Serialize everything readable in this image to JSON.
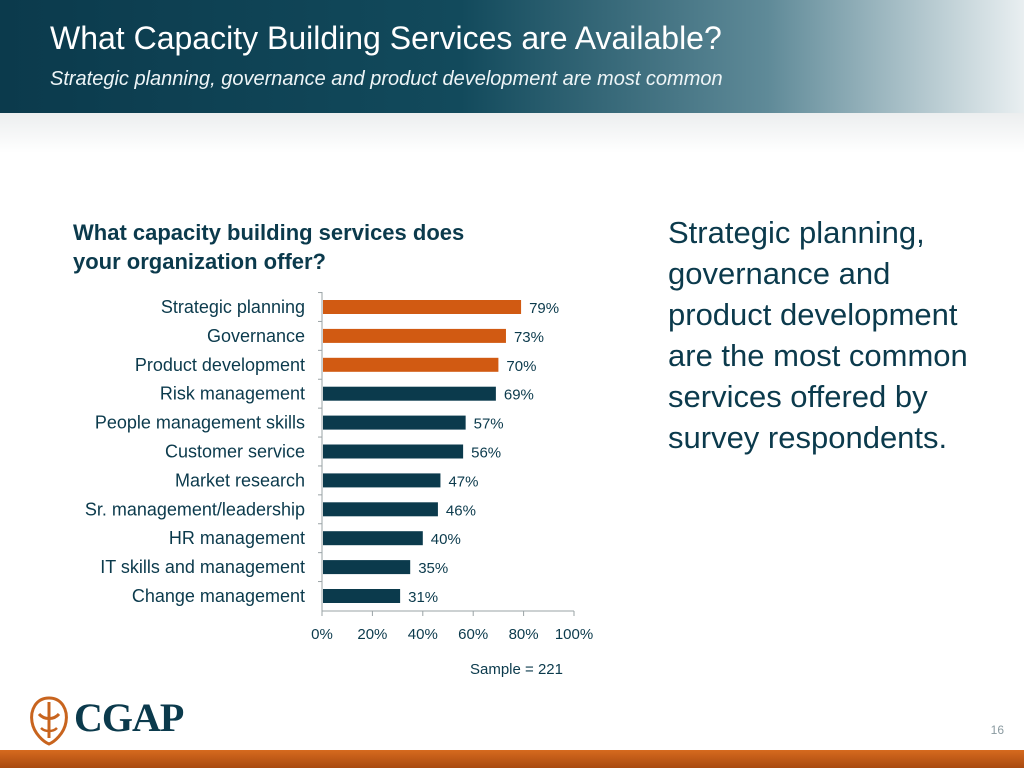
{
  "header": {
    "title": "What Capacity Building Services are Available?",
    "subtitle": "Strategic planning, governance and product development are most common"
  },
  "chart_question": "What capacity building services does your organization offer?",
  "takeaway": "Strategic planning, governance and product development are the most common services offered by survey respondents.",
  "sample_note": "Sample = 221",
  "logo": {
    "text": "CGAP",
    "icon": "cgap-emblem-icon"
  },
  "page_number": "16",
  "colors": {
    "highlight_bar": "#d15a12",
    "base_bar": "#0b3a4c",
    "footer": "#c55a17"
  },
  "chart_data": {
    "type": "bar",
    "orientation": "horizontal",
    "title": "What capacity building services does your organization offer?",
    "categories": [
      "Strategic planning",
      "Governance",
      "Product development",
      "Risk management",
      "People management skills",
      "Customer service",
      "Market research",
      "Sr. management/leadership",
      "HR management",
      "IT skills and management",
      "Change management"
    ],
    "values": [
      79,
      73,
      70,
      69,
      57,
      56,
      47,
      46,
      40,
      35,
      31
    ],
    "value_labels": [
      "79%",
      "73%",
      "70%",
      "69%",
      "57%",
      "56%",
      "47%",
      "46%",
      "40%",
      "35%",
      "31%"
    ],
    "highlighted": [
      true,
      true,
      true,
      false,
      false,
      false,
      false,
      false,
      false,
      false,
      false
    ],
    "xlim": [
      0,
      100
    ],
    "xticks": [
      "0%",
      "20%",
      "40%",
      "60%",
      "80%",
      "100%"
    ],
    "grid": false,
    "legend": "none"
  }
}
